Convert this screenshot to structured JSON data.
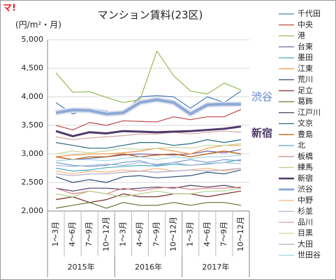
{
  "logo": "マ!",
  "chart_data": {
    "type": "line",
    "title": "マンション賃料(23区)",
    "y_label": "(円/m²・月)",
    "categories": [
      "1～3月",
      "4～6月",
      "7～9月",
      "10～12月",
      "1～3月",
      "4～6月",
      "7～9月",
      "10～12月",
      "1～3月",
      "4～6月",
      "7～9月",
      "10～12月"
    ],
    "groups": [
      "2015年",
      "2016年",
      "2017年"
    ],
    "ylim": [
      2000,
      5000
    ],
    "yticks": [
      {
        "value": 2000,
        "label": "2,000"
      },
      {
        "value": 2500,
        "label": "2,500"
      },
      {
        "value": 3000,
        "label": "3,000"
      },
      {
        "value": 3500,
        "label": "3,500"
      },
      {
        "value": 4000,
        "label": "4,000"
      },
      {
        "value": 4500,
        "label": "4,500"
      },
      {
        "value": 5000,
        "label": "5,000"
      }
    ],
    "grid": true,
    "annotations": [
      "渋谷",
      "新宿"
    ],
    "series": [
      {
        "name": "千代田",
        "color": "#4a7ebb",
        "values": [
          3900,
          3700,
          3800,
          3750,
          3700,
          4000,
          4020,
          4000,
          3800,
          4000,
          3900,
          4100
        ]
      },
      {
        "name": "中央",
        "color": "#be4b48",
        "values": [
          3500,
          3420,
          3550,
          3500,
          3580,
          3570,
          3560,
          3650,
          3600,
          3650,
          3650,
          3780
        ]
      },
      {
        "name": "港",
        "color": "#98b954",
        "values": [
          4420,
          4080,
          4090,
          3990,
          3900,
          3950,
          4800,
          4370,
          4100,
          4050,
          4240,
          4120
        ]
      },
      {
        "name": "台東",
        "color": "#7d60a0",
        "values": [
          2950,
          2900,
          2920,
          2950,
          2980,
          3000,
          2990,
          2980,
          3000,
          3050,
          3020,
          3080
        ]
      },
      {
        "name": "墨田",
        "color": "#46aac5",
        "values": [
          2750,
          2700,
          2720,
          2760,
          2780,
          2800,
          2790,
          2820,
          2800,
          2830,
          2850,
          2900
        ]
      },
      {
        "name": "江東",
        "color": "#f79646",
        "values": [
          2950,
          2980,
          3000,
          3000,
          3020,
          3050,
          3100,
          3050,
          3000,
          3100,
          3150,
          3150
        ]
      },
      {
        "name": "荒川",
        "color": "#2c4d75",
        "values": [
          2600,
          2500,
          2550,
          2500,
          2600,
          2620,
          2580,
          2600,
          2620,
          2680,
          2650,
          2720
        ]
      },
      {
        "name": "足立",
        "color": "#772c2a",
        "values": [
          2200,
          2250,
          2150,
          2200,
          2300,
          2250,
          2250,
          2300,
          2300,
          2250,
          2300,
          2350
        ]
      },
      {
        "name": "葛飾",
        "color": "#5f7530",
        "values": [
          2050,
          2100,
          2150,
          2050,
          2150,
          2100,
          2100,
          2150,
          2100,
          2150,
          2150,
          2100
        ]
      },
      {
        "name": "江戸川",
        "color": "#4d3b62",
        "values": [
          2400,
          2350,
          2400,
          2400,
          2380,
          2400,
          2420,
          2400,
          2450,
          2420,
          2450,
          2400
        ]
      },
      {
        "name": "文京",
        "color": "#276a7c",
        "values": [
          3200,
          3150,
          3100,
          3100,
          3150,
          3200,
          3200,
          3150,
          3180,
          3250,
          3200,
          3250
        ]
      },
      {
        "name": "豊島",
        "color": "#b65708",
        "values": [
          2950,
          2900,
          2950,
          2950,
          3000,
          2950,
          2980,
          3000,
          2950,
          3000,
          3050,
          3000
        ]
      },
      {
        "name": "北",
        "color": "#729aca",
        "values": [
          2850,
          2800,
          2780,
          2800,
          2850,
          2880,
          2800,
          2850,
          2900,
          2850,
          2900,
          2880
        ]
      },
      {
        "name": "板橋",
        "color": "#d9807e",
        "values": [
          2400,
          2300,
          2350,
          2300,
          2400,
          2350,
          2400,
          2420,
          2380,
          2400,
          2400,
          2420
        ]
      },
      {
        "name": "練馬",
        "color": "#b6d08e",
        "values": [
          2300,
          2250,
          2350,
          2300,
          2250,
          2300,
          2350,
          2300,
          2300,
          2350,
          2350,
          2400
        ]
      },
      {
        "name": "新宿",
        "color": "#4f3a6b",
        "values": [
          3400,
          3310,
          3380,
          3360,
          3400,
          3390,
          3380,
          3390,
          3400,
          3420,
          3440,
          3480
        ]
      },
      {
        "name": "渋谷",
        "color": "#8ea9d6",
        "values": [
          3720,
          3770,
          3760,
          3700,
          3720,
          3900,
          3950,
          3900,
          3700,
          3860,
          3870,
          3870
        ]
      },
      {
        "name": "中野",
        "color": "#f9b37c",
        "values": [
          2700,
          2650,
          2700,
          2680,
          2720,
          2700,
          2750,
          2700,
          2720,
          2750,
          2700,
          2750
        ]
      },
      {
        "name": "杉並",
        "color": "#a5b8d9",
        "values": [
          2800,
          2780,
          2800,
          2820,
          2800,
          2850,
          2820,
          2850,
          2800,
          2820,
          2850,
          2830
        ]
      },
      {
        "name": "品川",
        "color": "#d7a3a0",
        "values": [
          3300,
          3250,
          3280,
          3300,
          3320,
          3350,
          3350,
          3380,
          3350,
          3380,
          3400,
          3380
        ]
      },
      {
        "name": "目黒",
        "color": "#c5d9a1",
        "values": [
          3000,
          3050,
          3020,
          3050,
          3100,
          3080,
          3100,
          3120,
          3100,
          3150,
          3150,
          3180
        ]
      },
      {
        "name": "大田",
        "color": "#b4a7c8",
        "values": [
          2650,
          2620,
          2650,
          2650,
          2680,
          2700,
          2680,
          2700,
          2720,
          2700,
          2720,
          2750
        ]
      },
      {
        "name": "世田谷",
        "color": "#a3d5e5",
        "values": [
          2880,
          2900,
          2900,
          2880,
          2920,
          2950,
          2900,
          2950,
          2920,
          2950,
          2950,
          2980
        ]
      }
    ]
  }
}
